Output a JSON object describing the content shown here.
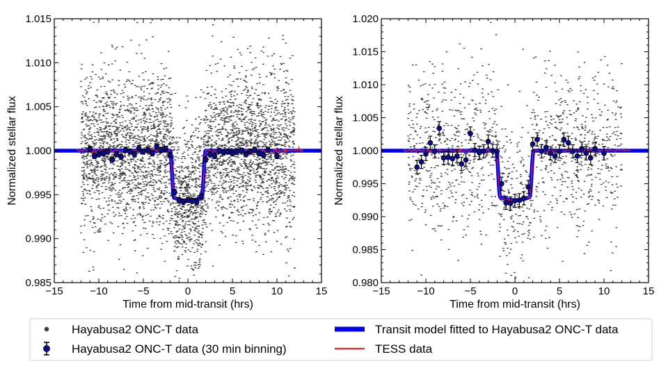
{
  "colors": {
    "scatter": "#3a3a3a",
    "binned_fill": "#0a0a9a",
    "binned_edge": "#000000",
    "model": "#0000ee",
    "tess": "#e8282d"
  },
  "chart_data": [
    {
      "type": "scatter",
      "panel": "left",
      "xlabel": "Time from mid-transit (hrs)",
      "ylabel": "Normalized stellar flux",
      "xlim": [
        -15,
        15
      ],
      "ylim": [
        0.985,
        1.015
      ],
      "xticks": [
        -15,
        -10,
        -5,
        0,
        5,
        10,
        15
      ],
      "xtick_labels": [
        "−15",
        "−10",
        "−5",
        "0",
        "5",
        "10",
        "15"
      ],
      "yticks": [
        0.985,
        0.99,
        0.995,
        1.0,
        1.005,
        1.01,
        1.015
      ],
      "ytick_labels": [
        "0.985",
        "0.990",
        "0.995",
        "1.000",
        "1.005",
        "1.010",
        "1.015"
      ],
      "transit": {
        "center": 0,
        "depth": 0.0057,
        "half_width_hrs": 2.0
      },
      "raw_scatter": {
        "x_range": [
          -12,
          12
        ],
        "sigma": 0.0045,
        "count": 4200
      },
      "binned": [
        [
          -11.0,
          1.0002,
          0.0003
        ],
        [
          -10.5,
          0.9994,
          0.0003
        ],
        [
          -10.0,
          0.9996,
          0.0003
        ],
        [
          -9.5,
          0.9997,
          0.0003
        ],
        [
          -9.0,
          0.9999,
          0.0003
        ],
        [
          -8.5,
          0.999,
          0.0003
        ],
        [
          -8.0,
          0.9996,
          0.0003
        ],
        [
          -7.5,
          0.9993,
          0.0003
        ],
        [
          -7.0,
          1.0001,
          0.0003
        ],
        [
          -6.5,
          0.9999,
          0.0003
        ],
        [
          -6.0,
          0.9996,
          0.0003
        ],
        [
          -5.5,
          1.0003,
          0.0003
        ],
        [
          -5.0,
          0.9999,
          0.0003
        ],
        [
          -4.5,
          1.0001,
          0.0003
        ],
        [
          -4.0,
          0.9997,
          0.0003
        ],
        [
          -3.5,
          1.0005,
          0.0003
        ],
        [
          -3.0,
          1.0001,
          0.0003
        ],
        [
          -2.5,
          1.0002,
          0.0003
        ],
        [
          -2.0,
          0.9995,
          0.0003
        ],
        [
          -1.5,
          0.9953,
          0.0003
        ],
        [
          -1.0,
          0.9944,
          0.0003
        ],
        [
          -0.5,
          0.9942,
          0.0003
        ],
        [
          0.0,
          0.9944,
          0.0003
        ],
        [
          0.5,
          0.9943,
          0.0003
        ],
        [
          1.0,
          0.9942,
          0.0003
        ],
        [
          1.5,
          0.9948,
          0.0003
        ],
        [
          2.0,
          0.999,
          0.0003
        ],
        [
          2.5,
          0.9996,
          0.0003
        ],
        [
          3.0,
          0.9994,
          0.0003
        ],
        [
          3.5,
          1.0,
          0.0003
        ],
        [
          4.0,
          0.9998,
          0.0003
        ],
        [
          4.5,
          0.9999,
          0.0003
        ],
        [
          5.0,
          0.9997,
          0.0003
        ],
        [
          5.5,
          0.9999,
          0.0003
        ],
        [
          6.0,
          1.0,
          0.0003
        ],
        [
          6.5,
          0.9996,
          0.0003
        ],
        [
          7.0,
          0.9999,
          0.0003
        ],
        [
          7.5,
          1.0001,
          0.0003
        ],
        [
          8.0,
          0.9997,
          0.0003
        ],
        [
          8.5,
          0.9995,
          0.0003
        ],
        [
          9.0,
          1.0001,
          0.0003
        ],
        [
          10.0,
          0.9994,
          0.0003
        ]
      ]
    },
    {
      "type": "scatter",
      "panel": "right",
      "xlabel": "Time from mid-transit (hrs)",
      "ylabel": "Normalized stellar flux",
      "xlim": [
        -15,
        15
      ],
      "ylim": [
        0.98,
        1.02
      ],
      "xticks": [
        -15,
        -10,
        -5,
        0,
        5,
        10,
        15
      ],
      "xtick_labels": [
        "−15",
        "−10",
        "−5",
        "0",
        "5",
        "10",
        "15"
      ],
      "yticks": [
        0.98,
        0.985,
        0.99,
        0.995,
        1.0,
        1.005,
        1.01,
        1.015,
        1.02
      ],
      "ytick_labels": [
        "0.980",
        "0.985",
        "0.990",
        "0.995",
        "1.000",
        "1.005",
        "1.010",
        "1.015",
        "1.020"
      ],
      "transit": {
        "center": 0,
        "depth": 0.0075,
        "half_width_hrs": 2.1
      },
      "raw_scatter": {
        "x_range": [
          -12,
          12
        ],
        "sigma": 0.0065,
        "count": 1300
      },
      "binned": [
        [
          -11.0,
          0.9975,
          0.001
        ],
        [
          -10.5,
          0.9983,
          0.001
        ],
        [
          -10.0,
          0.9995,
          0.001
        ],
        [
          -9.5,
          1.0012,
          0.001
        ],
        [
          -9.0,
          0.9999,
          0.001
        ],
        [
          -8.5,
          1.0034,
          0.001
        ],
        [
          -8.0,
          0.9989,
          0.001
        ],
        [
          -7.5,
          0.999,
          0.001
        ],
        [
          -7.0,
          0.9988,
          0.001
        ],
        [
          -6.5,
          0.9992,
          0.001
        ],
        [
          -6.0,
          0.998,
          0.001
        ],
        [
          -5.5,
          0.9986,
          0.001
        ],
        [
          -5.0,
          1.0026,
          0.001
        ],
        [
          -4.5,
          1.0001,
          0.001
        ],
        [
          -4.0,
          0.9997,
          0.001
        ],
        [
          -3.5,
          0.9999,
          0.001
        ],
        [
          -3.0,
          1.0014,
          0.001
        ],
        [
          -2.5,
          1.0,
          0.001
        ],
        [
          -2.0,
          0.9999,
          0.001
        ],
        [
          -1.5,
          0.995,
          0.001
        ],
        [
          -1.0,
          0.9921,
          0.001
        ],
        [
          -0.5,
          0.992,
          0.001
        ],
        [
          0.0,
          0.9924,
          0.001
        ],
        [
          0.5,
          0.9925,
          0.001
        ],
        [
          1.0,
          0.9928,
          0.001
        ],
        [
          1.5,
          0.9945,
          0.001
        ],
        [
          2.0,
          1.001,
          0.001
        ],
        [
          2.5,
          1.0017,
          0.001
        ],
        [
          3.0,
          0.9999,
          0.001
        ],
        [
          3.5,
          1.0005,
          0.001
        ],
        [
          4.0,
          0.9996,
          0.001
        ],
        [
          4.5,
          0.9992,
          0.001
        ],
        [
          5.0,
          0.9999,
          0.001
        ],
        [
          5.5,
          1.0017,
          0.001
        ],
        [
          6.0,
          1.0012,
          0.001
        ],
        [
          6.5,
          0.9999,
          0.001
        ],
        [
          7.0,
          0.9992,
          0.001
        ],
        [
          7.5,
          1.0003,
          0.001
        ],
        [
          8.0,
          0.9996,
          0.001
        ],
        [
          8.5,
          0.9989,
          0.001
        ],
        [
          9.0,
          1.0003,
          0.001
        ],
        [
          10.0,
          0.9996,
          0.001
        ]
      ]
    }
  ],
  "legend": {
    "items": [
      {
        "key": "scatter",
        "label": "Hayabusa2 ONC-T data"
      },
      {
        "key": "binned",
        "label": "Hayabusa2 ONC-T data (30 min binning)"
      },
      {
        "key": "model",
        "label": "Transit model fitted to Hayabusa2 ONC-T data"
      },
      {
        "key": "tess",
        "label": "TESS data"
      }
    ]
  }
}
